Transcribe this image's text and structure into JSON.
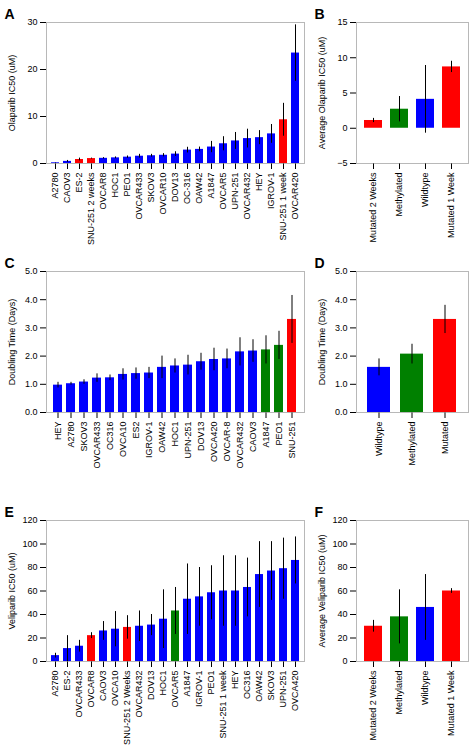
{
  "chart_data": [
    {
      "type": "bar",
      "title": "A",
      "categories": [
        "A2780",
        "CAOV3",
        "ES-2",
        "SNU-251 2 weeks",
        "OVCAR8",
        "HOC1",
        "PEO1",
        "OVCAR433",
        "SKOV3",
        "OVCAR10",
        "DOV13",
        "OC-316",
        "OAW42",
        "A1847",
        "OVCAR5",
        "UPN-251",
        "OVCAR432",
        "HEY",
        "IGROV-1",
        "SNU-251 1 week",
        "OVCAR420"
      ],
      "values": [
        0.15,
        0.45,
        0.85,
        1.05,
        1.1,
        1.2,
        1.35,
        1.55,
        1.65,
        1.75,
        2.0,
        2.85,
        3.0,
        3.5,
        4.2,
        4.8,
        5.3,
        5.5,
        6.3,
        9.3,
        23.5
      ],
      "errors": [
        0.05,
        0.2,
        0.3,
        0.1,
        0.15,
        0.2,
        0.25,
        0.4,
        0.3,
        0.35,
        0.5,
        0.6,
        0.5,
        1.2,
        1.5,
        1.8,
        2.0,
        1.5,
        2.0,
        3.5,
        6.0
      ],
      "colors": [
        "#0000FF",
        "#0000FF",
        "#FF0000",
        "#FF0000",
        "#0000FF",
        "#0000FF",
        "#0000FF",
        "#0000FF",
        "#0000FF",
        "#0000FF",
        "#0000FF",
        "#0000FF",
        "#0000FF",
        "#0000FF",
        "#0000FF",
        "#0000FF",
        "#0000FF",
        "#0000FF",
        "#0000FF",
        "#FF0000",
        "#0000FF"
      ],
      "ylabel": "Olaparib IC50 (uM)",
      "ylim": [
        0,
        30
      ],
      "yticks": [
        0,
        10,
        20,
        30
      ]
    },
    {
      "type": "bar",
      "title": "B",
      "categories": [
        "Mutated 2 Weeks",
        "Methylated",
        "Wildtype",
        "Mutated 1 Week"
      ],
      "values": [
        1.1,
        2.7,
        4.1,
        8.7
      ],
      "errors": [
        0.3,
        1.8,
        4.8,
        0.8
      ],
      "colors": [
        "#FF0000",
        "#008000",
        "#0000FF",
        "#FF0000"
      ],
      "ylabel": "Average Olaparib IC50 (uM)",
      "ylim": [
        -5,
        15
      ],
      "yticks": [
        -5,
        0,
        5,
        10,
        15
      ]
    },
    {
      "type": "bar",
      "title": "C",
      "categories": [
        "HEY",
        "A2780",
        "SKOV3",
        "OVCAR433",
        "OC316",
        "OVCA10",
        "ES2",
        "IGROV-1",
        "OAW42",
        "HOC1",
        "UPN-251",
        "DOV13",
        "OVCA420",
        "OVCAR-8",
        "OVCAR432",
        "CAOV3",
        "A1847",
        "PEO1",
        "SNU-251"
      ],
      "values": [
        0.97,
        1.02,
        1.08,
        1.22,
        1.23,
        1.35,
        1.38,
        1.4,
        1.6,
        1.65,
        1.68,
        1.8,
        1.88,
        1.9,
        2.15,
        2.18,
        2.22,
        2.38,
        3.3
      ],
      "errors": [
        0.1,
        0.05,
        0.08,
        0.15,
        0.1,
        0.2,
        0.2,
        0.2,
        0.4,
        0.25,
        0.35,
        0.3,
        0.4,
        0.35,
        0.5,
        0.4,
        0.5,
        0.5,
        0.85
      ],
      "colors": [
        "#0000FF",
        "#0000FF",
        "#0000FF",
        "#0000FF",
        "#0000FF",
        "#0000FF",
        "#0000FF",
        "#0000FF",
        "#0000FF",
        "#0000FF",
        "#0000FF",
        "#0000FF",
        "#0000FF",
        "#0000FF",
        "#0000FF",
        "#0000FF",
        "#008000",
        "#008000",
        "#FF0000"
      ],
      "ylabel": "Doubling Time (Days)",
      "ylim": [
        0,
        5
      ],
      "yticks": [
        0,
        1,
        2,
        3,
        4,
        5
      ]
    },
    {
      "type": "bar",
      "title": "D",
      "categories": [
        "Wildtype",
        "Methylated",
        "Mutated"
      ],
      "values": [
        1.6,
        2.07,
        3.3
      ],
      "errors": [
        0.3,
        0.35,
        0.5
      ],
      "colors": [
        "#0000FF",
        "#008000",
        "#FF0000"
      ],
      "ylabel": "Doubling Time (Days)",
      "ylim": [
        0,
        5
      ],
      "yticks": [
        0,
        1,
        2,
        3,
        4,
        5
      ]
    },
    {
      "type": "bar",
      "title": "E",
      "categories": [
        "A2780",
        "ES-2",
        "OVCAR433",
        "OVCAR8",
        "CAOV3",
        "OVCA10",
        "SNU-251 2 Weeks",
        "OVCAR432",
        "DOV13",
        "HOC1",
        "OVCAR5",
        "A1847",
        "IGROV-1",
        "PEO1",
        "SNU-251 1 week",
        "HEY",
        "OC316",
        "OAW42",
        "SKOV3",
        "UPN-251",
        "OVCA420"
      ],
      "values": [
        5.0,
        11.0,
        13.0,
        22.0,
        26.0,
        27.5,
        29.0,
        30.0,
        31.0,
        36.0,
        43.0,
        53.0,
        55.0,
        58.5,
        60.0,
        60.0,
        63.0,
        74.0,
        77.0,
        79.0,
        86.0
      ],
      "errors": [
        2.0,
        11.0,
        5.0,
        2.5,
        8.0,
        15.0,
        10.0,
        13.0,
        9.0,
        25.0,
        20.0,
        30.0,
        25.0,
        23.0,
        30.0,
        30.0,
        25.0,
        28.0,
        25.0,
        26.0,
        20.0
      ],
      "colors": [
        "#0000FF",
        "#0000FF",
        "#0000FF",
        "#FF0000",
        "#0000FF",
        "#0000FF",
        "#FF0000",
        "#0000FF",
        "#0000FF",
        "#0000FF",
        "#008000",
        "#0000FF",
        "#0000FF",
        "#0000FF",
        "#0000FF",
        "#0000FF",
        "#0000FF",
        "#0000FF",
        "#0000FF",
        "#0000FF",
        "#0000FF"
      ],
      "ylabel": "Veliparib IC50 (uM)",
      "ylim": [
        0,
        120
      ],
      "yticks": [
        0,
        20,
        40,
        60,
        80,
        100,
        120
      ]
    },
    {
      "type": "bar",
      "title": "F",
      "categories": [
        "Mutated 2 Weeks",
        "Methylated",
        "Wildtype",
        "Mutated 1 Week"
      ],
      "values": [
        30.0,
        38.0,
        46.0,
        60.0
      ],
      "errors": [
        5.0,
        23.0,
        28.0,
        2.0
      ],
      "colors": [
        "#FF0000",
        "#008000",
        "#0000FF",
        "#FF0000"
      ],
      "ylabel": "Average Veliparib IC50 (uM)",
      "ylim": [
        0,
        120
      ],
      "yticks": [
        0,
        20,
        40,
        60,
        80,
        100,
        120
      ]
    }
  ]
}
